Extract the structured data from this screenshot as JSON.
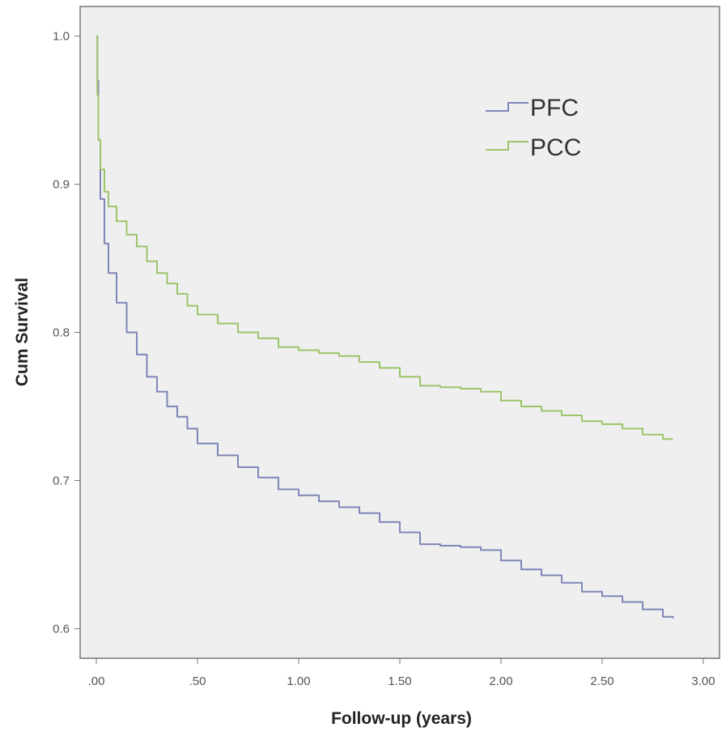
{
  "chart_data": {
    "type": "line",
    "title": "",
    "xlabel": "Follow-up (years)",
    "ylabel": "Cum Survival",
    "xlim": [
      -0.08,
      3.08
    ],
    "ylim": [
      0.58,
      1.02
    ],
    "x_ticks": [
      0,
      0.5,
      1,
      1.5,
      2,
      2.5,
      3
    ],
    "x_tick_labels": [
      ".00",
      ".50",
      "1.00",
      "1.50",
      "2.00",
      "2.50",
      "3.00"
    ],
    "y_ticks": [
      0.6,
      0.7,
      0.8,
      0.9,
      1.0
    ],
    "y_tick_labels": [
      "0.6",
      "0.7",
      "0.8",
      "0.9",
      "1.0"
    ],
    "grid": false,
    "legend_position": "top-right",
    "colors": {
      "PFC": "#7f86b8",
      "PCC": "#9cc46a",
      "plot_bg": "#efefef",
      "axis": "#777777"
    },
    "series": [
      {
        "name": "PFC",
        "x": [
          0,
          0.005,
          0.01,
          0.02,
          0.04,
          0.06,
          0.1,
          0.15,
          0.2,
          0.25,
          0.3,
          0.35,
          0.4,
          0.45,
          0.5,
          0.6,
          0.7,
          0.8,
          0.9,
          1.0,
          1.1,
          1.2,
          1.3,
          1.4,
          1.5,
          1.6,
          1.7,
          1.8,
          1.9,
          2.0,
          2.1,
          2.2,
          2.3,
          2.4,
          2.5,
          2.6,
          2.7,
          2.8,
          2.85
        ],
        "y": [
          1.0,
          0.97,
          0.93,
          0.89,
          0.86,
          0.84,
          0.82,
          0.8,
          0.785,
          0.77,
          0.76,
          0.75,
          0.743,
          0.735,
          0.725,
          0.717,
          0.709,
          0.702,
          0.694,
          0.69,
          0.686,
          0.682,
          0.678,
          0.672,
          0.665,
          0.657,
          0.656,
          0.655,
          0.653,
          0.646,
          0.64,
          0.636,
          0.631,
          0.625,
          0.622,
          0.618,
          0.613,
          0.608,
          0.607
        ]
      },
      {
        "name": "PCC",
        "x": [
          0,
          0.005,
          0.01,
          0.02,
          0.04,
          0.06,
          0.1,
          0.15,
          0.2,
          0.25,
          0.3,
          0.35,
          0.4,
          0.45,
          0.5,
          0.6,
          0.7,
          0.8,
          0.9,
          1.0,
          1.1,
          1.2,
          1.3,
          1.4,
          1.5,
          1.6,
          1.7,
          1.8,
          1.9,
          2.0,
          2.1,
          2.2,
          2.3,
          2.4,
          2.5,
          2.6,
          2.7,
          2.8,
          2.85
        ],
        "y": [
          1.0,
          0.96,
          0.93,
          0.91,
          0.895,
          0.885,
          0.875,
          0.866,
          0.858,
          0.848,
          0.84,
          0.833,
          0.826,
          0.818,
          0.812,
          0.806,
          0.8,
          0.796,
          0.79,
          0.788,
          0.786,
          0.784,
          0.78,
          0.776,
          0.77,
          0.764,
          0.763,
          0.762,
          0.76,
          0.754,
          0.75,
          0.747,
          0.744,
          0.74,
          0.738,
          0.735,
          0.731,
          0.728,
          0.728
        ]
      }
    ]
  }
}
